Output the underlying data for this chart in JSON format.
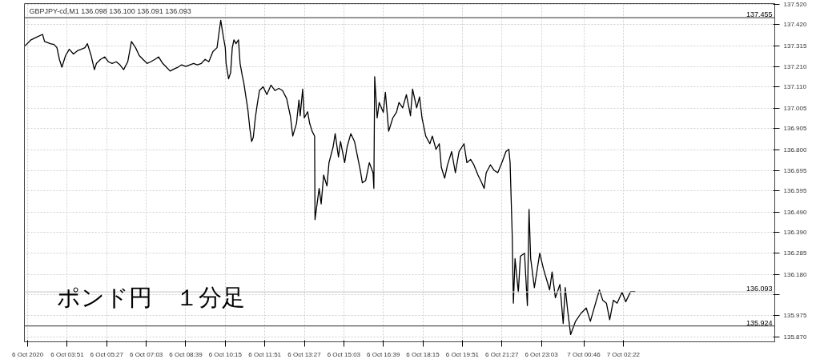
{
  "chart_data": {
    "type": "line",
    "title": "GBPJPY-cd,M1  136.098 136.100 136.091 136.093",
    "annotations": [
      "ポンド円　１分足"
    ],
    "x": [
      "2020-10-06T02:08",
      "2020-10-06T02:23",
      "2020-10-06T02:38",
      "2020-10-06T02:51",
      "2020-10-06T02:56",
      "2020-10-06T03:10",
      "2020-10-06T03:19",
      "2020-10-06T03:26",
      "2020-10-06T03:32",
      "2020-10-06T03:38",
      "2020-10-06T03:47",
      "2020-10-06T03:56",
      "2020-10-06T04:06",
      "2020-10-06T04:16",
      "2020-10-06T04:25",
      "2020-10-06T04:34",
      "2020-10-06T04:40",
      "2020-10-06T04:49",
      "2020-10-06T04:57",
      "2020-10-06T05:02",
      "2020-10-06T05:12",
      "2020-10-06T05:22",
      "2020-10-06T05:31",
      "2020-10-06T05:40",
      "2020-10-06T05:50",
      "2020-10-06T05:59",
      "2020-10-06T06:08",
      "2020-10-06T06:18",
      "2020-10-06T06:27",
      "2020-10-06T06:37",
      "2020-10-06T06:46",
      "2020-10-06T06:55",
      "2020-10-06T07:05",
      "2020-10-06T07:14",
      "2020-10-06T07:24",
      "2020-10-06T07:33",
      "2020-10-06T07:43",
      "2020-10-06T07:52",
      "2020-10-06T08:01",
      "2020-10-06T08:11",
      "2020-10-06T08:20",
      "2020-10-06T08:29",
      "2020-10-06T08:39",
      "2020-10-06T08:49",
      "2020-10-06T08:58",
      "2020-10-06T09:07",
      "2020-10-06T09:17",
      "2020-10-06T09:26",
      "2020-10-06T09:35",
      "2020-10-06T09:45",
      "2020-10-06T09:55",
      "2020-10-06T10:00",
      "2020-10-06T10:04",
      "2020-10-06T10:10",
      "2020-10-06T10:15",
      "2020-10-06T10:17",
      "2020-10-06T10:23",
      "2020-10-06T10:28",
      "2020-10-06T10:32",
      "2020-10-06T10:36",
      "2020-10-06T10:41",
      "2020-10-06T10:47",
      "2020-10-06T10:51",
      "2020-10-06T10:56",
      "2020-10-06T11:00",
      "2020-10-06T11:10",
      "2020-10-06T11:15",
      "2020-10-06T11:19",
      "2020-10-06T11:23",
      "2020-10-06T11:28",
      "2020-10-06T11:32",
      "2020-10-06T11:38",
      "2020-10-06T11:47",
      "2020-10-06T11:56",
      "2020-10-06T12:06",
      "2020-10-06T12:16",
      "2020-10-06T12:25",
      "2020-10-06T12:34",
      "2020-10-06T12:44",
      "2020-10-06T12:53",
      "2020-10-06T12:59",
      "2020-10-06T13:08",
      "2020-10-06T13:14",
      "2020-10-06T13:17",
      "2020-10-06T13:23",
      "2020-10-06T13:27",
      "2020-10-06T13:35",
      "2020-10-06T13:40",
      "2020-10-06T13:46",
      "2020-10-06T13:52",
      "2020-10-06T13:53",
      "2020-10-06T14:03",
      "2020-10-06T14:08",
      "2020-10-06T14:14",
      "2020-10-06T14:22",
      "2020-10-06T14:27",
      "2020-10-06T14:37",
      "2020-10-06T14:42",
      "2020-10-06T14:50",
      "2020-10-06T14:55",
      "2020-10-06T15:05",
      "2020-10-06T15:11",
      "2020-10-06T15:20",
      "2020-10-06T15:29",
      "2020-10-06T15:43",
      "2020-10-06T15:48",
      "2020-10-06T15:56",
      "2020-10-06T16:05",
      "2020-10-06T16:14",
      "2020-10-06T16:16",
      "2020-10-06T16:18",
      "2020-10-06T16:24",
      "2020-10-06T16:29",
      "2020-10-06T16:39",
      "2020-10-06T16:44",
      "2020-10-06T16:52",
      "2020-10-06T17:02",
      "2020-10-06T17:11",
      "2020-10-06T17:17",
      "2020-10-06T17:26",
      "2020-10-06T17:35",
      "2020-10-06T17:45",
      "2020-10-06T17:50",
      "2020-10-06T18:00",
      "2020-10-06T18:07",
      "2020-10-06T18:13",
      "2020-10-06T18:22",
      "2020-10-06T18:32",
      "2020-10-06T18:38",
      "2020-10-06T18:47",
      "2020-10-06T18:55",
      "2020-10-06T19:00",
      "2020-10-06T19:08",
      "2020-10-06T19:15",
      "2020-10-06T19:25",
      "2020-10-06T19:34",
      "2020-10-06T19:43",
      "2020-10-06T19:55",
      "2020-10-06T20:02",
      "2020-10-06T20:11",
      "2020-10-06T20:19",
      "2020-10-06T20:29",
      "2020-10-06T20:38",
      "2020-10-06T20:44",
      "2020-10-06T20:49",
      "2020-10-06T20:59",
      "2020-10-06T21:08",
      "2020-10-06T21:17",
      "2020-10-06T21:27",
      "2020-10-06T21:37",
      "2020-10-06T21:44",
      "2020-10-06T21:47",
      "2020-10-06T21:52",
      "2020-10-06T21:55",
      "2020-10-06T21:59",
      "2020-10-06T22:07",
      "2020-10-06T22:12",
      "2020-10-06T22:22",
      "2020-10-06T22:29",
      "2020-10-06T22:33",
      "2020-10-06T22:37",
      "2020-10-06T22:46",
      "2020-10-06T22:59",
      "2020-10-06T23:08",
      "2020-10-06T23:23",
      "2020-10-06T23:29",
      "2020-10-06T23:37",
      "2020-10-06T23:48",
      "2020-10-06T23:56",
      "2020-10-07T00:01",
      "2020-10-07T00:07",
      "2020-10-07T00:14",
      "2020-10-07T00:26",
      "2020-10-07T00:39",
      "2020-10-07T00:52",
      "2020-10-07T01:02",
      "2020-10-07T01:13",
      "2020-10-07T01:24",
      "2020-10-07T01:32",
      "2020-10-07T01:41",
      "2020-10-07T01:49",
      "2020-10-07T01:58",
      "2020-10-07T02:07",
      "2020-10-07T02:19",
      "2020-10-07T02:28",
      "2020-10-07T02:40",
      "2020-10-07T02:51"
    ],
    "series": [
      {
        "color": "#000000",
        "values": [
          137.314,
          137.345,
          137.36,
          137.372,
          137.337,
          137.326,
          137.322,
          137.306,
          137.248,
          137.209,
          137.267,
          137.298,
          137.275,
          137.291,
          137.298,
          137.306,
          137.326,
          137.267,
          137.197,
          137.228,
          137.248,
          137.26,
          137.236,
          137.228,
          137.236,
          137.221,
          137.197,
          137.236,
          137.337,
          137.306,
          137.267,
          137.248,
          137.228,
          137.236,
          137.248,
          137.26,
          137.228,
          137.209,
          137.19,
          137.201,
          137.209,
          137.221,
          137.213,
          137.221,
          137.228,
          137.221,
          137.228,
          137.248,
          137.236,
          137.287,
          137.306,
          137.384,
          137.442,
          137.364,
          137.306,
          137.228,
          137.151,
          137.182,
          137.306,
          137.345,
          137.326,
          137.345,
          137.228,
          137.17,
          137.131,
          136.996,
          136.899,
          136.84,
          136.86,
          136.957,
          137.015,
          137.093,
          137.112,
          137.073,
          137.12,
          137.093,
          137.104,
          137.093,
          137.054,
          136.968,
          136.867,
          136.93,
          137.046,
          136.968,
          137.1,
          136.957,
          136.988,
          136.93,
          136.891,
          136.867,
          136.452,
          136.607,
          136.53,
          136.673,
          136.619,
          136.735,
          136.813,
          136.879,
          136.763,
          136.84,
          136.735,
          136.813,
          136.879,
          136.84,
          136.697,
          136.635,
          136.646,
          136.735,
          136.685,
          136.607,
          137.162,
          136.957,
          137.034,
          136.985,
          137.085,
          136.891,
          136.957,
          136.985,
          137.034,
          137.007,
          137.073,
          136.968,
          137.1,
          137.007,
          137.062,
          136.957,
          136.867,
          136.829,
          136.867,
          136.801,
          136.829,
          136.712,
          136.658,
          136.724,
          136.79,
          136.685,
          136.79,
          136.829,
          136.735,
          136.751,
          136.724,
          136.673,
          136.635,
          136.607,
          136.685,
          136.724,
          136.697,
          136.685,
          136.735,
          136.79,
          136.801,
          136.735,
          136.386,
          136.037,
          136.258,
          136.091,
          136.27,
          136.285,
          136.025,
          136.503,
          136.258,
          136.114,
          136.285,
          136.208,
          136.103,
          136.192,
          136.064,
          136.13,
          135.936,
          136.114,
          135.998,
          135.881,
          135.947,
          135.986,
          136.013,
          135.947,
          136.025,
          136.103,
          136.052,
          136.037,
          135.955,
          136.052,
          136.037,
          136.091,
          136.044,
          136.095,
          136.095
        ]
      }
    ],
    "xlim": [
      "2020-10-06T02:07",
      "2020-10-07T08:30"
    ],
    "ylim": [
      135.845,
      137.525
    ],
    "xticks": [
      {
        "value": "2020-10-06T02:15",
        "label": "6 Oct 2020"
      },
      {
        "value": "2020-10-06T03:51",
        "label": "6 Oct 03:51"
      },
      {
        "value": "2020-10-06T05:27",
        "label": "6 Oct 05:27"
      },
      {
        "value": "2020-10-06T07:03",
        "label": "6 Oct 07:03"
      },
      {
        "value": "2020-10-06T08:39",
        "label": "6 Oct 08:39"
      },
      {
        "value": "2020-10-06T10:15",
        "label": "6 Oct 10:15"
      },
      {
        "value": "2020-10-06T11:51",
        "label": "6 Oct 11:51"
      },
      {
        "value": "2020-10-06T13:27",
        "label": "6 Oct 13:27"
      },
      {
        "value": "2020-10-06T15:03",
        "label": "6 Oct 15:03"
      },
      {
        "value": "2020-10-06T16:39",
        "label": "6 Oct 16:39"
      },
      {
        "value": "2020-10-06T18:15",
        "label": "6 Oct 18:15"
      },
      {
        "value": "2020-10-06T19:51",
        "label": "6 Oct 19:51"
      },
      {
        "value": "2020-10-06T21:27",
        "label": "6 Oct 21:27"
      },
      {
        "value": "2020-10-06T23:03",
        "label": "6 Oct 23:03"
      },
      {
        "value": "2020-10-07T00:46",
        "label": "7 Oct 00:46"
      },
      {
        "value": "2020-10-07T02:22",
        "label": "7 Oct 02:22"
      }
    ],
    "yticks": [
      {
        "value": 135.87,
        "label": "135.870"
      },
      135.975,
      {
        "value": 136.08,
        "label": null
      },
      {
        "value": 136.18,
        "label": "136.180"
      },
      136.285,
      {
        "value": 136.39,
        "label": "136.390"
      },
      {
        "value": 136.49,
        "label": "136.490"
      },
      136.595,
      136.695,
      {
        "value": 136.8,
        "label": "136.800"
      },
      136.905,
      137.005,
      {
        "value": 137.11,
        "label": "137.110"
      },
      {
        "value": 137.21,
        "label": "137.210"
      },
      137.315,
      {
        "value": 137.42,
        "label": "137.420"
      },
      {
        "value": 137.52,
        "label": "137.520"
      }
    ],
    "ref_lines": [
      {
        "axis": "y",
        "value": 137.455,
        "label": "137.455",
        "color": "#555555"
      },
      {
        "axis": "y",
        "value": 136.093,
        "label": "136.093",
        "color": "#d0d0d0"
      },
      {
        "axis": "y",
        "value": 135.924,
        "label": "135.924",
        "color": "#555555"
      }
    ],
    "grid": true
  }
}
